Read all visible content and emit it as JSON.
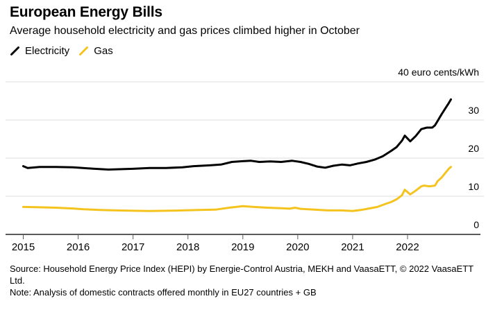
{
  "header": {
    "title": "European Energy Bills",
    "subtitle": "Average household electricity and gas prices climbed higher in October"
  },
  "legend": [
    {
      "label": "Electricity",
      "color": "#000000"
    },
    {
      "label": "Gas",
      "color": "#F5C31D"
    }
  ],
  "colors": {
    "electricity": "#000000",
    "gas": "#F5C31D",
    "gridline": "#DCDCDC",
    "axis": "#58595B",
    "text": "#000000"
  },
  "axis": {
    "y_ticks": [
      {
        "value": 0,
        "label": "0"
      },
      {
        "value": 10,
        "label": "10"
      },
      {
        "value": 20,
        "label": "20"
      },
      {
        "value": 30,
        "label": "30"
      },
      {
        "value": 40,
        "label": "40 euro cents/kWh"
      }
    ],
    "x_ticks": [
      {
        "label": "2015",
        "year": 2015
      },
      {
        "label": "2016",
        "year": 2016
      },
      {
        "label": "2017",
        "year": 2017
      },
      {
        "label": "2018",
        "year": 2018
      },
      {
        "label": "2019",
        "year": 2019
      },
      {
        "label": "2020",
        "year": 2020
      },
      {
        "label": "2021",
        "year": 2021
      },
      {
        "label": "2022",
        "year": 2022
      }
    ]
  },
  "footer": {
    "source": "Source: Household Energy Price Index (HEPI) by Energie-Control Austria, MEKH and VaasaETT, © 2022 VaasaETT Ltd.",
    "note": "Note: Analysis of domestic contracts offered monthly in EU27 countries + GB"
  },
  "chart_data": {
    "type": "line",
    "title": "European Energy Bills",
    "subtitle": "Average household electricity and gas prices climbed higher in October",
    "ylabel": "euro cents/kWh",
    "ylim": [
      0,
      40
    ],
    "xlim": [
      2015,
      2022.95
    ],
    "grid": "horizontal",
    "legend_position": "top-left",
    "x_unit": "decimal year (monthly data, Jan 2015 - Oct 2022)",
    "series": [
      {
        "name": "Electricity",
        "color": "#000000",
        "x": [
          2015.0,
          2015.08,
          2015.3,
          2015.6,
          2015.9,
          2016.0,
          2016.3,
          2016.55,
          2016.8,
          2017.0,
          2017.3,
          2017.6,
          2017.9,
          2018.1,
          2018.4,
          2018.6,
          2018.8,
          2019.0,
          2019.15,
          2019.3,
          2019.5,
          2019.7,
          2019.9,
          2020.05,
          2020.2,
          2020.35,
          2020.5,
          2020.65,
          2020.8,
          2020.95,
          2021.1,
          2021.25,
          2021.4,
          2021.55,
          2021.7,
          2021.8,
          2021.9,
          2021.95,
          2022.05,
          2022.15,
          2022.25,
          2022.35,
          2022.45,
          2022.5,
          2022.55,
          2022.62,
          2022.7,
          2022.75,
          2022.79
        ],
        "y": [
          17.9,
          17.4,
          17.7,
          17.7,
          17.6,
          17.5,
          17.2,
          17.0,
          17.1,
          17.2,
          17.4,
          17.4,
          17.6,
          17.9,
          18.1,
          18.3,
          19.0,
          19.2,
          19.3,
          19.0,
          19.15,
          19.0,
          19.3,
          19.0,
          18.5,
          17.8,
          17.5,
          18.0,
          18.3,
          18.1,
          18.6,
          19.0,
          19.6,
          20.5,
          21.9,
          22.9,
          24.6,
          25.9,
          24.4,
          25.8,
          27.6,
          28.0,
          28.0,
          28.6,
          29.8,
          31.5,
          33.3,
          34.4,
          35.4
        ]
      },
      {
        "name": "Gas",
        "color": "#F5C31D",
        "x": [
          2015.0,
          2015.3,
          2015.6,
          2015.9,
          2016.1,
          2016.4,
          2016.7,
          2017.0,
          2017.3,
          2017.6,
          2017.9,
          2018.2,
          2018.5,
          2018.75,
          2019.0,
          2019.2,
          2019.45,
          2019.7,
          2019.85,
          2019.95,
          2020.05,
          2020.3,
          2020.55,
          2020.8,
          2021.0,
          2021.15,
          2021.3,
          2021.45,
          2021.6,
          2021.7,
          2021.8,
          2021.9,
          2021.95,
          2022.05,
          2022.15,
          2022.25,
          2022.3,
          2022.4,
          2022.5,
          2022.55,
          2022.62,
          2022.7,
          2022.75,
          2022.79
        ],
        "y": [
          7.2,
          7.1,
          7.0,
          6.8,
          6.6,
          6.4,
          6.3,
          6.2,
          6.15,
          6.2,
          6.3,
          6.4,
          6.5,
          7.0,
          7.4,
          7.2,
          7.0,
          6.85,
          6.75,
          7.0,
          6.7,
          6.5,
          6.3,
          6.3,
          6.15,
          6.4,
          6.8,
          7.2,
          8.0,
          8.5,
          9.2,
          10.3,
          11.7,
          10.5,
          11.5,
          12.6,
          12.8,
          12.6,
          12.8,
          14.0,
          14.9,
          16.3,
          17.2,
          17.7
        ]
      }
    ]
  }
}
